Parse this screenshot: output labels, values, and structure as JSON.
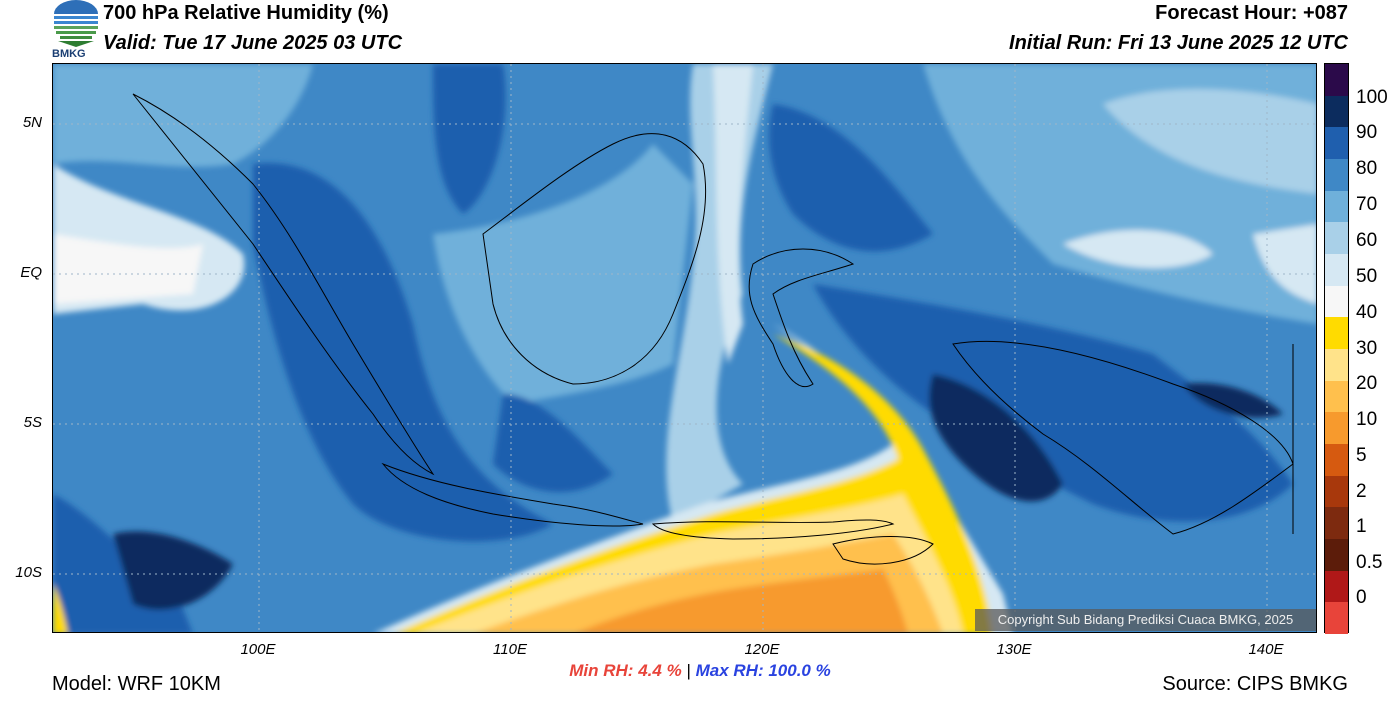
{
  "header": {
    "title": "700 hPa Relative Humidity (%)",
    "valid": "Valid: Tue 17 June 2025 03 UTC",
    "forecast_hour": "Forecast Hour: +087",
    "initial_run": "Initial Run: Fri 13 June 2025 12 UTC"
  },
  "logo": {
    "text": "BMKG"
  },
  "map": {
    "lat_labels": [
      "5N",
      "EQ",
      "5S",
      "10S"
    ],
    "lon_labels": [
      "100E",
      "110E",
      "120E",
      "130E",
      "140E"
    ],
    "copyright": "Copyright Sub Bidang Prediksi Cuaca BMKG, 2025"
  },
  "colorbar": {
    "labels": [
      "100",
      "90",
      "80",
      "70",
      "60",
      "50",
      "40",
      "30",
      "20",
      "10",
      "5",
      "2",
      "1",
      "0.5",
      "0"
    ],
    "colors": [
      "#2b0a4a",
      "#0c2c5e",
      "#1f5fae",
      "#3f88c6",
      "#6fb0da",
      "#a9d0e8",
      "#d6e8f3",
      "#f7f7f7",
      "#ffdb00",
      "#ffe38a",
      "#ffc04d",
      "#f79a2d",
      "#d65a10",
      "#a8380c",
      "#7d2a0f",
      "#5c1c0a",
      "#b01818",
      "#e8443a"
    ]
  },
  "footer": {
    "min_label": "Min RH:",
    "min_value": "4.4 %",
    "separator": "|",
    "max_label": "Max RH:",
    "max_value": "100.0 %",
    "model": "Model: WRF 10KM",
    "source": "Source: CIPS BMKG"
  }
}
